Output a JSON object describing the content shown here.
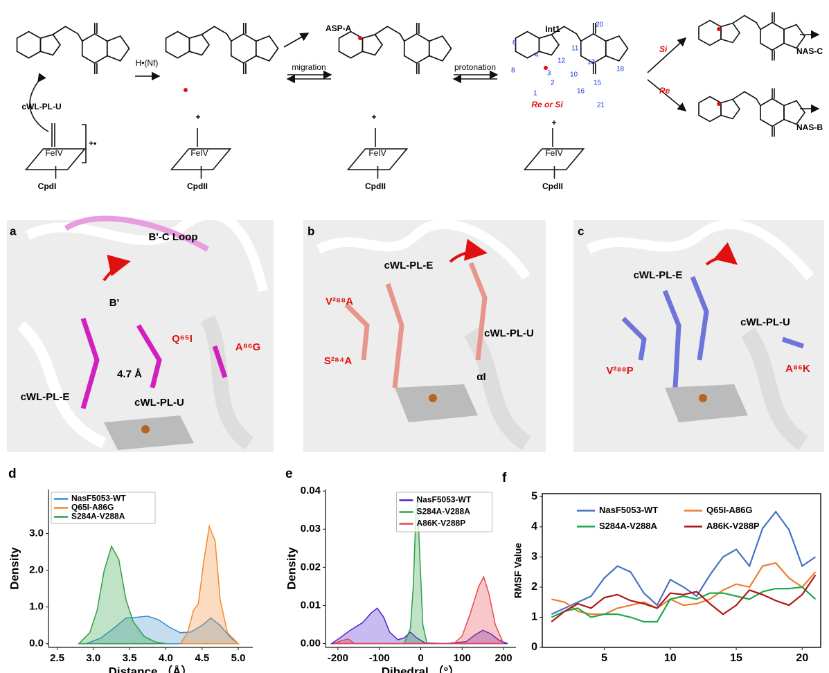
{
  "scheme": {
    "substrate": "cWL-PL-U",
    "h_transfer": "H•(Nf)",
    "asp": "ASP-A",
    "migration": "migration",
    "protonation": "protonation",
    "int1": "Int1",
    "re_or_si": "Re or Si",
    "si": "Si",
    "re": "Re",
    "nas_c": "NAS-C",
    "nas_b": "NAS-B",
    "cpd1": "CpdI",
    "cpd2": [
      "CpdII",
      "CpdII",
      "CpdII"
    ],
    "fe": [
      "FeIV",
      "FeIV",
      "FeIV",
      "FeIV"
    ],
    "plus": [
      "+",
      "+",
      "+"
    ],
    "radical_charge": "+•",
    "numbers": [
      "6",
      "4",
      "3",
      "12",
      "11",
      "20",
      "8",
      "1",
      "2",
      "10",
      "13",
      "18",
      "16",
      "15",
      "21"
    ]
  },
  "panels": [
    {
      "letter": "a",
      "labels": [
        "B'-C Loop",
        "B'",
        "Q⁶⁵I",
        "A⁸⁶G",
        "4.7 Å",
        "cWL-PL-E",
        "cWL-PL-U"
      ]
    },
    {
      "letter": "b",
      "labels": [
        "cWL-PL-E",
        "V²⁸⁸A",
        "S²⁸⁴A",
        "cWL-PL-U",
        "αI"
      ]
    },
    {
      "letter": "c",
      "labels": [
        "cWL-PL-E",
        "cWL-PL-U",
        "V²⁸⁸P",
        "A⁸⁶K"
      ]
    }
  ],
  "chart_data": [
    {
      "type": "area",
      "label": "d",
      "xlabel": "Distance （Å）",
      "ylabel": "Density",
      "xlim": [
        2.38,
        5.2
      ],
      "ylim": [
        -0.1,
        4.2
      ],
      "xticks": [
        2.5,
        {
          "value": 3.0,
          "label": "3.0"
        },
        3.5,
        {
          "value": 4.0,
          "label": "4.0"
        },
        4.5,
        {
          "value": 5.0,
          "label": "5.0"
        }
      ],
      "yticks": [
        {
          "value": 0,
          "label": "0.0"
        },
        {
          "value": 1,
          "label": "1.0"
        },
        {
          "value": 2,
          "label": "2.0"
        },
        {
          "value": 3,
          "label": "3.0"
        }
      ],
      "legend": "upper left",
      "series": [
        {
          "name": "NasF5053-WT",
          "color": "#3c8fd0",
          "x": [
            2.9,
            3.1,
            3.3,
            3.45,
            3.6,
            3.75,
            3.9,
            4.05,
            4.2,
            4.35,
            4.5,
            4.62,
            4.75,
            4.9,
            5.0
          ],
          "values": [
            0,
            0.15,
            0.45,
            0.7,
            0.72,
            0.75,
            0.65,
            0.45,
            0.3,
            0.32,
            0.5,
            0.7,
            0.5,
            0.15,
            0
          ]
        },
        {
          "name": "Q65I-A86G",
          "color": "#f28a2e",
          "x": [
            4.2,
            4.3,
            4.38,
            4.45,
            4.52,
            4.6,
            4.68,
            4.75,
            4.85,
            5.0
          ],
          "values": [
            0,
            0.3,
            0.9,
            1.1,
            2.2,
            3.2,
            2.8,
            1.2,
            0.3,
            0
          ]
        },
        {
          "name": "S284A-V288A",
          "color": "#2ea043",
          "x": [
            2.8,
            2.95,
            3.05,
            3.15,
            3.25,
            3.35,
            3.45,
            3.55,
            3.7,
            3.85,
            4.0
          ],
          "values": [
            0,
            0.3,
            0.9,
            2.0,
            2.65,
            2.3,
            1.2,
            0.6,
            0.2,
            0.05,
            0
          ]
        }
      ]
    },
    {
      "type": "area",
      "label": "e",
      "xlabel": "Dihedral （°）",
      "ylabel": "Density",
      "xlim": [
        -230,
        230
      ],
      "ylim": [
        -0.001,
        0.0404
      ],
      "xticks": [
        -200,
        -100,
        0,
        100,
        200
      ],
      "yticks": [
        {
          "value": 0,
          "label": "0.00"
        },
        {
          "value": 0.01,
          "label": "0.01"
        },
        {
          "value": 0.02,
          "label": "0.02"
        },
        {
          "value": 0.03,
          "label": "0.03"
        },
        {
          "value": 0.04,
          "label": "0.04"
        }
      ],
      "legend": "upper center",
      "series": [
        {
          "name": "NasF5053-WT",
          "color": "#4a1fd0",
          "x": [
            -215,
            -195,
            -170,
            -140,
            -120,
            -105,
            -90,
            -75,
            -55,
            -40,
            -25,
            -10,
            10,
            60,
            110,
            130,
            150,
            170,
            190,
            210
          ],
          "values": [
            0,
            0.0015,
            0.0035,
            0.0055,
            0.008,
            0.0093,
            0.007,
            0.003,
            0.001,
            0.0015,
            0.003,
            0.0015,
            0.0002,
            0,
            0.0005,
            0.0022,
            0.0035,
            0.0025,
            0.0008,
            0
          ]
        },
        {
          "name": "S284A-V288A",
          "color": "#2ea043",
          "x": [
            -40,
            -25,
            -18,
            -12,
            -8,
            -3,
            5,
            15
          ],
          "values": [
            0,
            0.004,
            0.015,
            0.033,
            0.038,
            0.025,
            0.005,
            0
          ]
        },
        {
          "name": "A86K-V288P",
          "color": "#e8474c",
          "x": [
            -210,
            -190,
            -175,
            -160,
            80,
            100,
            120,
            140,
            152,
            165,
            180,
            200
          ],
          "values": [
            0,
            0.0008,
            0.0012,
            0,
            0,
            0.002,
            0.008,
            0.015,
            0.0175,
            0.013,
            0.005,
            0
          ]
        }
      ]
    },
    {
      "type": "line",
      "label": "f",
      "ylabel": "RMSF Value",
      "frame": true,
      "xlim": [
        0.3,
        21.4
      ],
      "ylim": [
        0,
        5.1
      ],
      "xticks": [
        5,
        10,
        15,
        20
      ],
      "yticks": [
        0,
        1,
        2,
        3,
        4,
        5
      ],
      "legend": "upper center",
      "legend_columns": 2,
      "series": [
        {
          "name": "NasF5053-WT",
          "color": "#4472c4",
          "x": [
            1,
            2,
            3,
            4,
            5,
            6,
            7,
            8,
            9,
            10,
            11,
            12,
            13,
            14,
            15,
            16,
            17,
            18,
            19,
            20,
            21
          ],
          "values": [
            1.1,
            1.3,
            1.5,
            1.7,
            2.3,
            2.7,
            2.5,
            1.8,
            1.4,
            2.25,
            2.0,
            1.7,
            2.4,
            3.0,
            3.25,
            2.7,
            3.95,
            4.5,
            3.9,
            2.7,
            3.0
          ]
        },
        {
          "name": "Q65I-A86G",
          "color": "#ed7d31",
          "x": [
            1,
            2,
            3,
            4,
            5,
            6,
            7,
            8,
            9,
            10,
            11,
            12,
            13,
            14,
            15,
            16,
            17,
            18,
            19,
            20,
            21
          ],
          "values": [
            1.6,
            1.5,
            1.2,
            1.1,
            1.1,
            1.3,
            1.4,
            1.5,
            1.3,
            1.6,
            1.4,
            1.45,
            1.6,
            1.9,
            2.1,
            2.0,
            2.7,
            2.8,
            2.3,
            2.0,
            2.5
          ]
        },
        {
          "name": "S284A-V288A",
          "color": "#1fa84a",
          "x": [
            1,
            2,
            3,
            4,
            5,
            6,
            7,
            8,
            9,
            10,
            11,
            12,
            13,
            14,
            15,
            16,
            17,
            18,
            19,
            20,
            21
          ],
          "values": [
            1.0,
            1.2,
            1.3,
            1.0,
            1.1,
            1.1,
            1.0,
            0.85,
            0.85,
            1.6,
            1.7,
            1.6,
            1.8,
            1.8,
            1.7,
            1.6,
            1.85,
            1.95,
            1.95,
            2.0,
            1.6
          ]
        },
        {
          "name": "A86K-V288P",
          "color": "#b01515",
          "x": [
            1,
            2,
            3,
            4,
            5,
            6,
            7,
            8,
            9,
            10,
            11,
            12,
            13,
            14,
            15,
            16,
            17,
            18,
            19,
            20,
            21
          ],
          "values": [
            0.85,
            1.2,
            1.45,
            1.3,
            1.65,
            1.75,
            1.55,
            1.45,
            1.3,
            1.8,
            1.75,
            1.85,
            1.45,
            1.1,
            1.4,
            1.9,
            1.75,
            1.55,
            1.4,
            1.75,
            2.4
          ]
        }
      ]
    }
  ]
}
